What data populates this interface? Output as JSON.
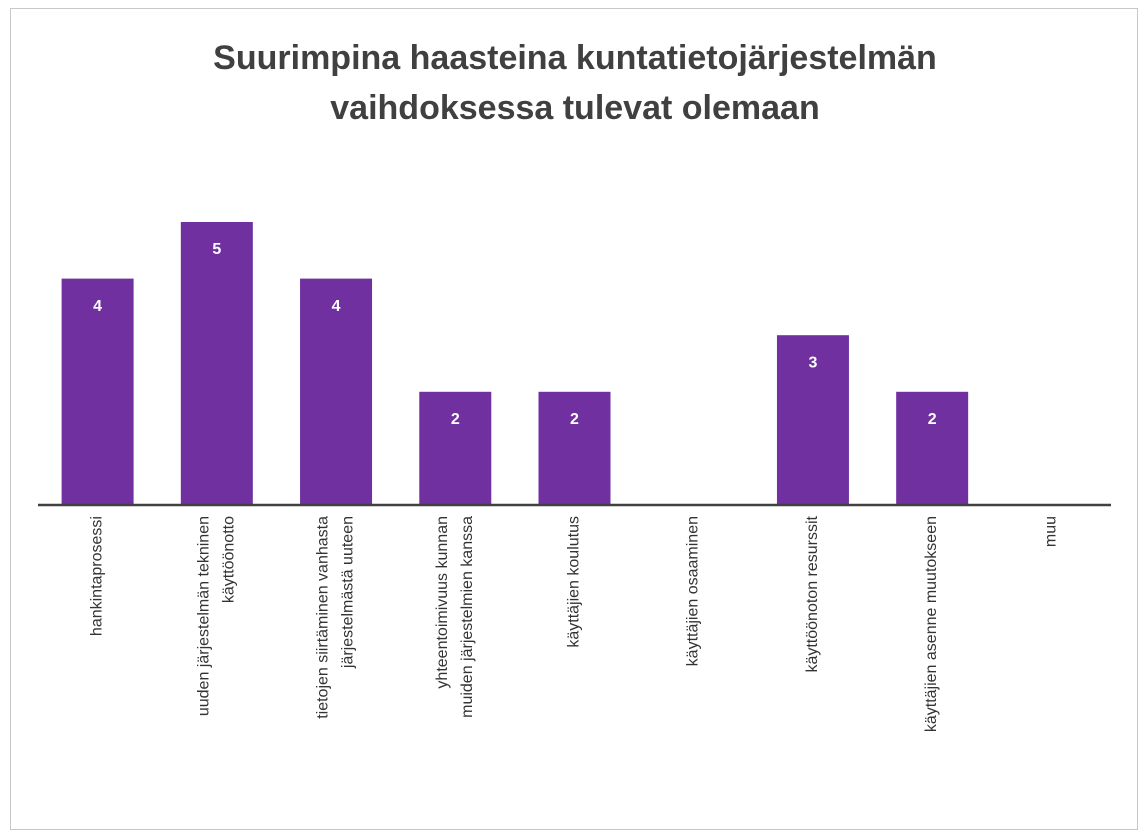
{
  "chart_data": {
    "type": "bar",
    "title": "Suurimpina haasteina kuntatietojärjestelmän\nvaihdoksessa tulevat olemaan",
    "categories": [
      "hankintaprosessi",
      "uuden järjestelmän tekninen\nkäyttöönotto",
      "tietojen siirtäminen vanhasta\njärjestelmästä uuteen",
      "yhteentoimivuus kunnan\nmuiden järjestelmien kanssa",
      "käyttäjien koulutus",
      "käyttäjien osaaminen",
      "käyttöönoton resurssit",
      "käyttäjien asenne muutokseen",
      "muu"
    ],
    "values": [
      4,
      5,
      4,
      2,
      2,
      0,
      3,
      2,
      0
    ],
    "value_labels": [
      "4",
      "5",
      "4",
      "2",
      "2",
      null,
      "3",
      "2",
      null
    ],
    "color": "#7030a0",
    "ylim": [
      0,
      5
    ]
  }
}
